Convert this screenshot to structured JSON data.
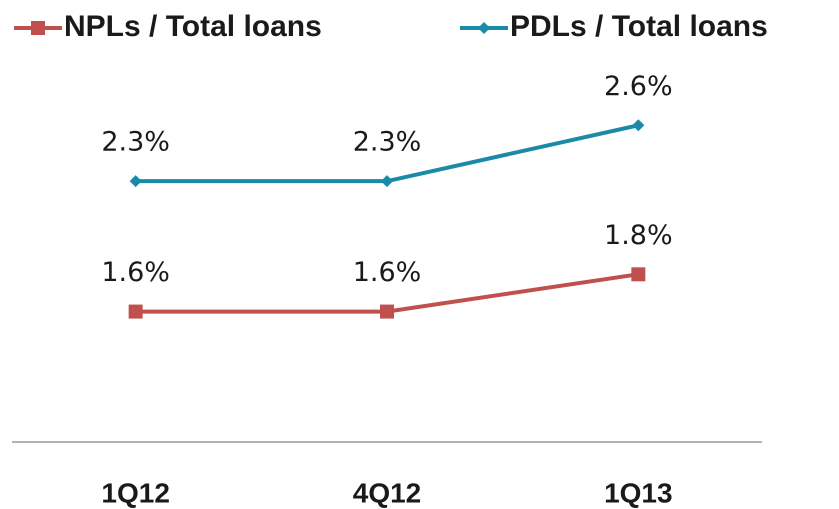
{
  "chart_data": {
    "type": "line",
    "categories": [
      "1Q12",
      "4Q12",
      "1Q13"
    ],
    "series": [
      {
        "name": "NPLs / Total loans",
        "color": "#c0504d",
        "marker": "square",
        "values": [
          1.6,
          1.6,
          1.8
        ],
        "value_labels": [
          "1.6%",
          "1.6%",
          "1.8%"
        ]
      },
      {
        "name": "PDLs / Total loans",
        "color": "#1b8aa7",
        "marker": "diamond",
        "values": [
          2.3,
          2.3,
          2.6
        ],
        "value_labels": [
          "2.3%",
          "2.3%",
          "2.6%"
        ]
      }
    ],
    "ylim": [
      0.9,
      2.8
    ],
    "legend": "top",
    "grid": false
  }
}
